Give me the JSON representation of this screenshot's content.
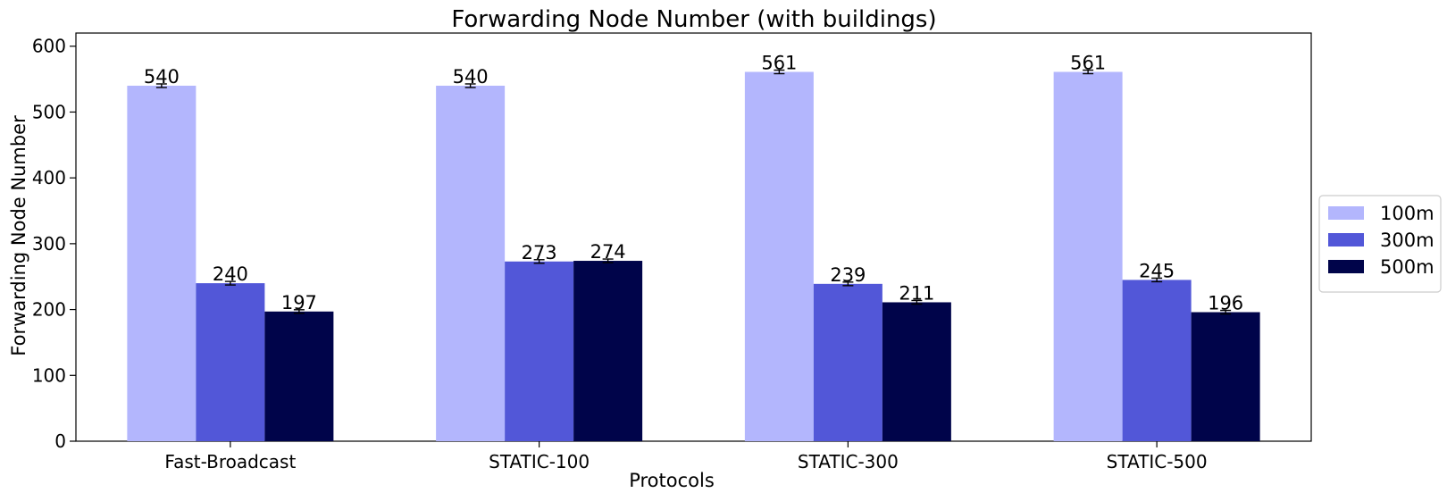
{
  "chart_data": {
    "type": "bar",
    "title": "Forwarding Node Number (with buildings)",
    "xlabel": "Protocols",
    "ylabel": "Forwarding Node Number",
    "categories": [
      "Fast-Broadcast",
      "STATIC-100",
      "STATIC-300",
      "STATIC-500"
    ],
    "ylim": [
      0,
      620
    ],
    "yticks": [
      0,
      100,
      200,
      300,
      400,
      500,
      600
    ],
    "grid": false,
    "legend_position": "right",
    "error_bars": true,
    "series": [
      {
        "name": "100m",
        "color": "#b3b6fd",
        "values": [
          540,
          540,
          561,
          561
        ],
        "labels": [
          "540",
          "540",
          "561",
          "561"
        ]
      },
      {
        "name": "300m",
        "color": "#5257d8",
        "values": [
          240,
          273,
          239,
          245
        ],
        "labels": [
          "240",
          "273",
          "239",
          "245"
        ]
      },
      {
        "name": "500m",
        "color": "#00044a",
        "values": [
          197,
          274,
          211,
          196
        ],
        "labels": [
          "197",
          "274",
          "211",
          "196"
        ]
      }
    ]
  }
}
